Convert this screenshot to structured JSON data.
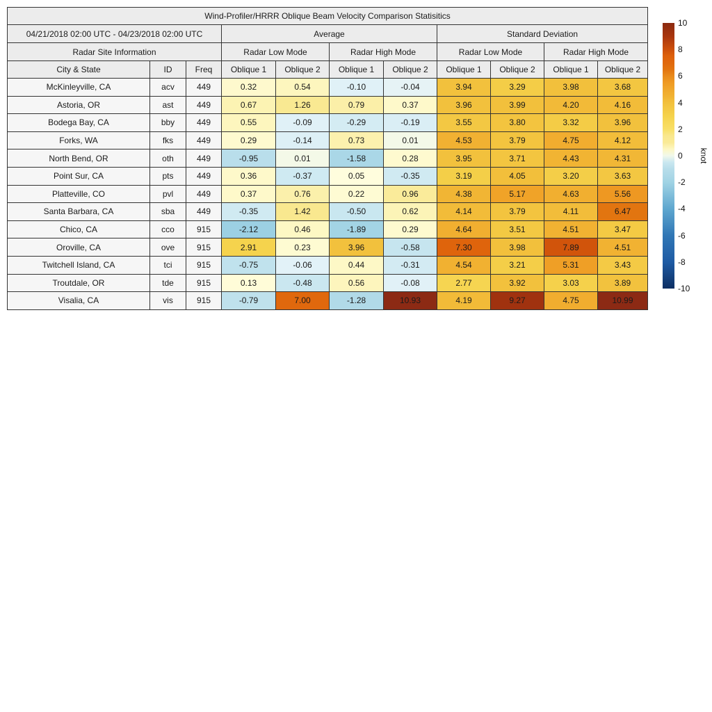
{
  "title": "Wind-Profiler/HRRR Oblique Beam Velocity Comparison Statisitics",
  "table_header": {
    "date_range": "04/21/2018 02:00 UTC - 04/23/2018 02:00 UTC",
    "average": "Average",
    "standard_deviation": "Standard Deviation",
    "site_info": "Radar Site Information",
    "low_mode": "Radar Low Mode",
    "high_mode": "Radar High Mode",
    "city": "City & State",
    "id": "ID",
    "freq": "Freq",
    "oblique1": "Oblique 1",
    "oblique2": "Oblique 2"
  },
  "colorbar": {
    "label": "knot",
    "min": -10,
    "max": 10,
    "ticks": [
      "10",
      "8",
      "6",
      "4",
      "2",
      "0",
      "-2",
      "-4",
      "-6",
      "-8",
      "-10"
    ],
    "colormap": [
      [
        -10,
        "#0d2f62"
      ],
      [
        -8,
        "#1e5ba4"
      ],
      [
        -6,
        "#3177b5"
      ],
      [
        -4,
        "#5ea7cf"
      ],
      [
        -2,
        "#a0d3e4"
      ],
      [
        -1,
        "#b7ddea"
      ],
      [
        -0.4,
        "#cde9f1"
      ],
      [
        -0.05,
        "#e3f2f8"
      ],
      [
        0.05,
        "#fffddd"
      ],
      [
        0.5,
        "#fdf7c2"
      ],
      [
        1,
        "#faea96"
      ],
      [
        1.5,
        "#f9e88e"
      ],
      [
        2,
        "#f8df66"
      ],
      [
        3,
        "#f5d24b"
      ],
      [
        4,
        "#f2c03c"
      ],
      [
        4.5,
        "#f1b232"
      ],
      [
        5,
        "#f0a72b"
      ],
      [
        5.5,
        "#ef9a23"
      ],
      [
        6,
        "#e88a1b"
      ],
      [
        6.5,
        "#e2740f"
      ],
      [
        7,
        "#e0680d"
      ],
      [
        7.5,
        "#de610b"
      ],
      [
        8,
        "#cd500b"
      ],
      [
        9,
        "#a8350e"
      ],
      [
        10,
        "#8b2a10"
      ],
      [
        11,
        "#8c2a14"
      ]
    ]
  },
  "chart_data": {
    "type": "heatmap",
    "title": "Wind-Profiler/HRRR Oblique Beam Velocity Comparison Statisitics",
    "unit": "knot",
    "color_range": [
      -10,
      10
    ],
    "value_groups": [
      "Average",
      "Standard Deviation"
    ],
    "mode_groups": [
      "Radar Low Mode",
      "Radar High Mode"
    ],
    "columns": [
      "Average Radar Low Mode Oblique 1",
      "Average Radar Low Mode Oblique 2",
      "Average Radar High Mode Oblique 1",
      "Average Radar High Mode Oblique 2",
      "Standard Deviation Radar Low Mode Oblique 1",
      "Standard Deviation Radar Low Mode Oblique 2",
      "Standard Deviation Radar High Mode Oblique 1",
      "Standard Deviation Radar High Mode Oblique 2"
    ],
    "rows": [
      {
        "city": "McKinleyville, CA",
        "id": "acv",
        "freq": "449",
        "avg": [
          "0.32",
          "0.54",
          "-0.10",
          "-0.04"
        ],
        "std": [
          "3.94",
          "3.29",
          "3.98",
          "3.68"
        ]
      },
      {
        "city": "Astoria, OR",
        "id": "ast",
        "freq": "449",
        "avg": [
          "0.67",
          "1.26",
          "0.79",
          "0.37"
        ],
        "std": [
          "3.96",
          "3.99",
          "4.20",
          "4.16"
        ]
      },
      {
        "city": "Bodega Bay, CA",
        "id": "bby",
        "freq": "449",
        "avg": [
          "0.55",
          "-0.09",
          "-0.29",
          "-0.19"
        ],
        "std": [
          "3.55",
          "3.80",
          "3.32",
          "3.96"
        ]
      },
      {
        "city": "Forks, WA",
        "id": "fks",
        "freq": "449",
        "avg": [
          "0.29",
          "-0.14",
          "0.73",
          "0.01"
        ],
        "std": [
          "4.53",
          "3.79",
          "4.75",
          "4.12"
        ]
      },
      {
        "city": "North Bend, OR",
        "id": "oth",
        "freq": "449",
        "avg": [
          "-0.95",
          "0.01",
          "-1.58",
          "0.28"
        ],
        "std": [
          "3.95",
          "3.71",
          "4.43",
          "4.31"
        ]
      },
      {
        "city": "Point Sur, CA",
        "id": "pts",
        "freq": "449",
        "avg": [
          "0.36",
          "-0.37",
          "0.05",
          "-0.35"
        ],
        "std": [
          "3.19",
          "4.05",
          "3.20",
          "3.63"
        ]
      },
      {
        "city": "Platteville, CO",
        "id": "pvl",
        "freq": "449",
        "avg": [
          "0.37",
          "0.76",
          "0.22",
          "0.96"
        ],
        "std": [
          "4.38",
          "5.17",
          "4.63",
          "5.56"
        ]
      },
      {
        "city": "Santa Barbara, CA",
        "id": "sba",
        "freq": "449",
        "avg": [
          "-0.35",
          "1.42",
          "-0.50",
          "0.62"
        ],
        "std": [
          "4.14",
          "3.79",
          "4.11",
          "6.47"
        ]
      },
      {
        "city": "Chico, CA",
        "id": "cco",
        "freq": "915",
        "avg": [
          "-2.12",
          "0.46",
          "-1.89",
          "0.29"
        ],
        "std": [
          "4.64",
          "3.51",
          "4.51",
          "3.47"
        ]
      },
      {
        "city": "Oroville, CA",
        "id": "ove",
        "freq": "915",
        "avg": [
          "2.91",
          "0.23",
          "3.96",
          "-0.58"
        ],
        "std": [
          "7.30",
          "3.98",
          "7.89",
          "4.51"
        ]
      },
      {
        "city": "Twitchell Island, CA",
        "id": "tci",
        "freq": "915",
        "avg": [
          "-0.75",
          "-0.06",
          "0.44",
          "-0.31"
        ],
        "std": [
          "4.54",
          "3.21",
          "5.31",
          "3.43"
        ]
      },
      {
        "city": "Troutdale, OR",
        "id": "tde",
        "freq": "915",
        "avg": [
          "0.13",
          "-0.48",
          "0.56",
          "-0.08"
        ],
        "std": [
          "2.77",
          "3.92",
          "3.03",
          "3.89"
        ]
      },
      {
        "city": "Visalia, CA",
        "id": "vis",
        "freq": "915",
        "avg": [
          "-0.79",
          "7.00",
          "-1.28",
          "10.93"
        ],
        "std": [
          "4.19",
          "9.27",
          "4.75",
          "10.99"
        ]
      }
    ]
  }
}
